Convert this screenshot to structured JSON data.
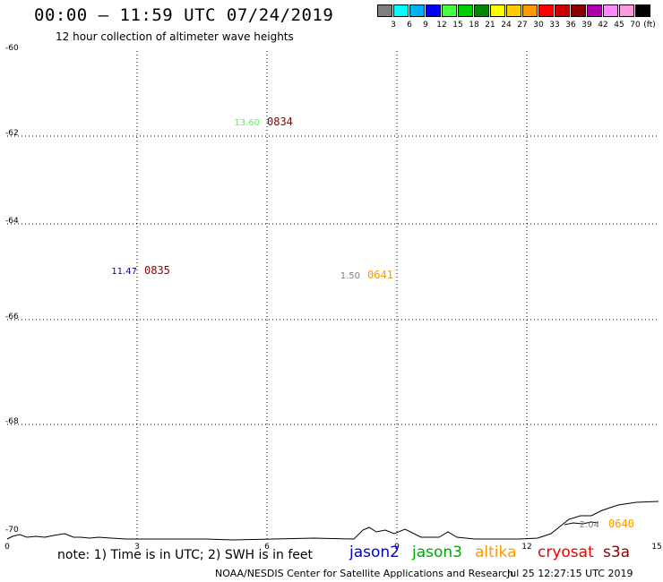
{
  "header": {
    "title": "00:00 – 11:59 UTC 07/24/2019",
    "subtitle": "12 hour collection of altimeter wave heights"
  },
  "color_scale": {
    "colors": [
      "#7f7f7f",
      "#00ffff",
      "#00b0ff",
      "#0000ff",
      "#44ff44",
      "#00cc00",
      "#008800",
      "#ffff00",
      "#ffcc00",
      "#ff9900",
      "#ff0000",
      "#cc0000",
      "#880000",
      "#aa00aa",
      "#ff88ff",
      "#ff99dd",
      "#000000"
    ],
    "labels": [
      "3",
      "6",
      "9",
      "12",
      "15",
      "18",
      "21",
      "24",
      "27",
      "30",
      "33",
      "36",
      "39",
      "42",
      "45",
      "70",
      "(ft)"
    ]
  },
  "axes": {
    "lat_labels": [
      "-60",
      "-62",
      "-64",
      "-66",
      "-68",
      "-70"
    ],
    "lon_labels": [
      "0",
      "3",
      "6",
      "9",
      "12",
      "15"
    ]
  },
  "observations": [
    {
      "swh": "13.60",
      "swh_color": "#66ee66",
      "time": "0834",
      "time_color": "#880000"
    },
    {
      "swh": "11.47",
      "swh_color": "#0000cc",
      "time": "0835",
      "time_color": "#880000"
    },
    {
      "swh": "1.50",
      "swh_color": "#7f7f7f",
      "time": "0641",
      "time_color": "#ff9900"
    },
    {
      "swh": "2.04",
      "swh_color": "#7f7f7f",
      "time": "0640",
      "time_color": "#ff9900"
    }
  ],
  "footer": {
    "note": "note: 1) Time is in UTC; 2) SWH is in feet",
    "satellites": [
      {
        "name": "jason2",
        "color": "#0000cc"
      },
      {
        "name": "jason3",
        "color": "#00aa00"
      },
      {
        "name": "altika",
        "color": "#ff9900"
      },
      {
        "name": "cryosat",
        "color": "#ee0000"
      },
      {
        "name": "s3a",
        "color": "#880000"
      }
    ],
    "credit": "NOAA/NESDIS Center for Satellite Applications and Research",
    "timestamp": "Jul 25 12:27:15 UTC 2019"
  }
}
